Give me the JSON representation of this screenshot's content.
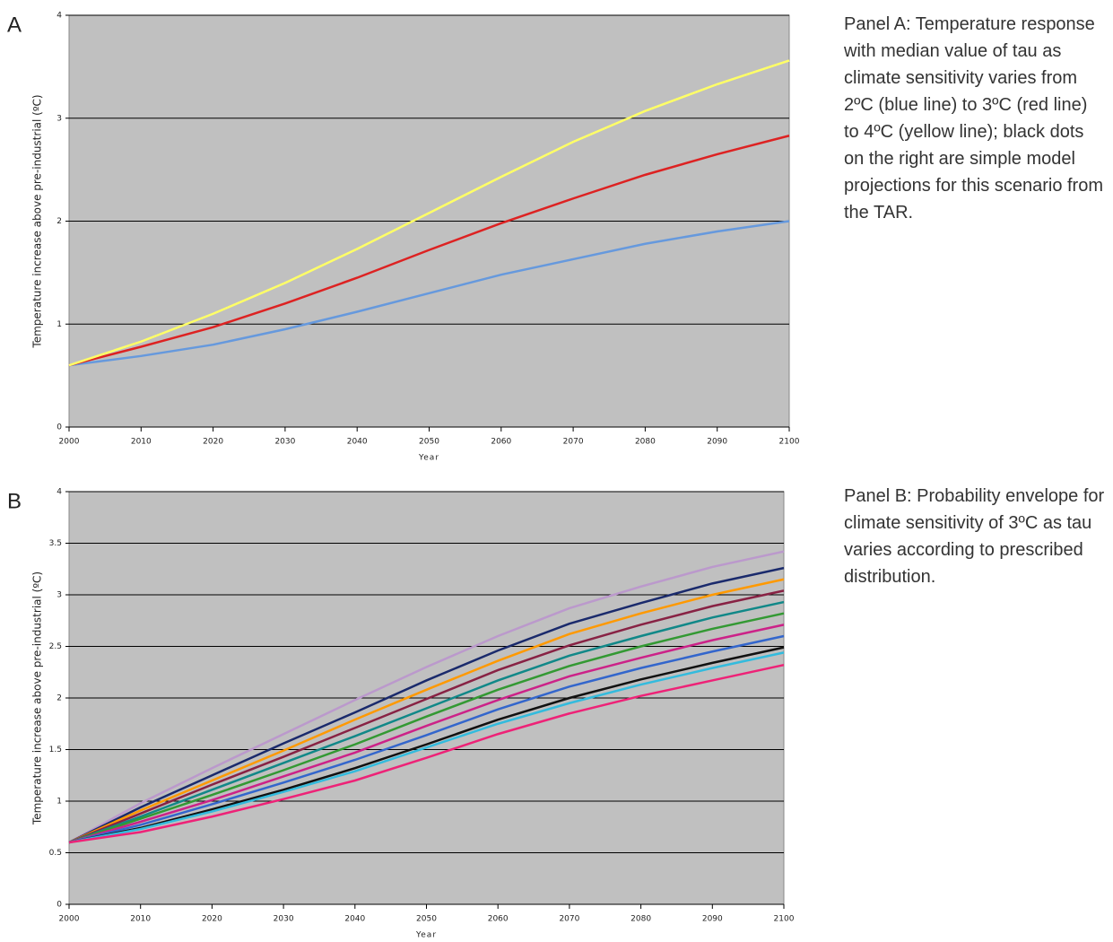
{
  "chart_data": [
    {
      "type": "line",
      "panel": "A",
      "caption": "Panel A: Temperature response with median value of tau as climate sensitivity varies from 2ºC (blue line) to 3ºC (red line) to 4ºC (yellow line); black dots on the right are simple model projections for this scenario from the TAR.",
      "x_label": "Year",
      "y_label": "Temperature increase above pre-industrial (ºC)",
      "x": [
        2000,
        2010,
        2020,
        2030,
        2040,
        2050,
        2060,
        2070,
        2080,
        2090,
        2100
      ],
      "series": [
        {
          "color": "#6699dd",
          "values": [
            0.6,
            0.69,
            0.8,
            0.95,
            1.12,
            1.3,
            1.48,
            1.63,
            1.78,
            1.9,
            2.0
          ]
        },
        {
          "color": "#dd2222",
          "values": [
            0.6,
            0.78,
            0.97,
            1.2,
            1.45,
            1.72,
            1.98,
            2.22,
            2.45,
            2.65,
            2.83
          ]
        },
        {
          "color": "#ffff66",
          "values": [
            0.6,
            0.83,
            1.1,
            1.4,
            1.73,
            2.08,
            2.43,
            2.77,
            3.07,
            3.33,
            3.56
          ]
        }
      ],
      "xlim": [
        2000,
        2100
      ],
      "ylim": [
        0,
        4
      ],
      "xticks": [
        2000,
        2010,
        2020,
        2030,
        2040,
        2050,
        2060,
        2070,
        2080,
        2090,
        2100
      ],
      "yticks": [
        0,
        1,
        2,
        3,
        4
      ],
      "grid": true,
      "background": "#c0c0c0"
    },
    {
      "type": "line",
      "panel": "B",
      "caption": "Panel B: Probability envelope for climate sensitivity of 3ºC as tau varies according to prescribed distribution.",
      "x_label": "Year",
      "y_label": "Temperature increase above pre-industrial (ºC)",
      "x": [
        2000,
        2010,
        2020,
        2030,
        2040,
        2050,
        2060,
        2070,
        2080,
        2090,
        2100
      ],
      "series": [
        {
          "color": "#bb99cc",
          "values": [
            0.6,
            0.98,
            1.32,
            1.65,
            1.98,
            2.3,
            2.6,
            2.87,
            3.08,
            3.27,
            3.42
          ]
        },
        {
          "color": "#1a2a6c",
          "values": [
            0.6,
            0.94,
            1.25,
            1.56,
            1.86,
            2.17,
            2.46,
            2.72,
            2.92,
            3.11,
            3.26
          ]
        },
        {
          "color": "#ff9900",
          "values": [
            0.6,
            0.91,
            1.2,
            1.49,
            1.79,
            2.08,
            2.36,
            2.62,
            2.82,
            3.0,
            3.15
          ]
        },
        {
          "color": "#882244",
          "values": [
            0.6,
            0.88,
            1.16,
            1.43,
            1.71,
            1.99,
            2.27,
            2.51,
            2.71,
            2.89,
            3.04
          ]
        },
        {
          "color": "#118888",
          "values": [
            0.6,
            0.85,
            1.11,
            1.37,
            1.63,
            1.9,
            2.17,
            2.41,
            2.6,
            2.78,
            2.93
          ]
        },
        {
          "color": "#339933",
          "values": [
            0.6,
            0.83,
            1.06,
            1.3,
            1.55,
            1.82,
            2.08,
            2.31,
            2.5,
            2.67,
            2.82
          ]
        },
        {
          "color": "#cc2288",
          "values": [
            0.6,
            0.8,
            1.01,
            1.24,
            1.47,
            1.73,
            1.98,
            2.21,
            2.39,
            2.56,
            2.71
          ]
        },
        {
          "color": "#3366cc",
          "values": [
            0.6,
            0.77,
            0.97,
            1.18,
            1.4,
            1.64,
            1.89,
            2.11,
            2.29,
            2.45,
            2.6
          ]
        },
        {
          "color": "#111111",
          "values": [
            0.6,
            0.74,
            0.92,
            1.11,
            1.32,
            1.55,
            1.79,
            2.0,
            2.18,
            2.34,
            2.49
          ]
        },
        {
          "color": "#33bbdd",
          "values": [
            0.6,
            0.73,
            0.9,
            1.09,
            1.29,
            1.52,
            1.75,
            1.95,
            2.13,
            2.29,
            2.44
          ]
        },
        {
          "color": "#ee2277",
          "values": [
            0.6,
            0.7,
            0.85,
            1.02,
            1.2,
            1.42,
            1.65,
            1.85,
            2.02,
            2.17,
            2.32
          ]
        }
      ],
      "xlim": [
        2000,
        2100
      ],
      "ylim": [
        0,
        4
      ],
      "xticks": [
        2000,
        2010,
        2020,
        2030,
        2040,
        2050,
        2060,
        2070,
        2080,
        2090,
        2100
      ],
      "yticks": [
        0,
        0.5,
        1,
        1.5,
        2,
        2.5,
        3,
        3.5,
        4
      ],
      "grid": true,
      "background": "#c0c0c0"
    }
  ]
}
